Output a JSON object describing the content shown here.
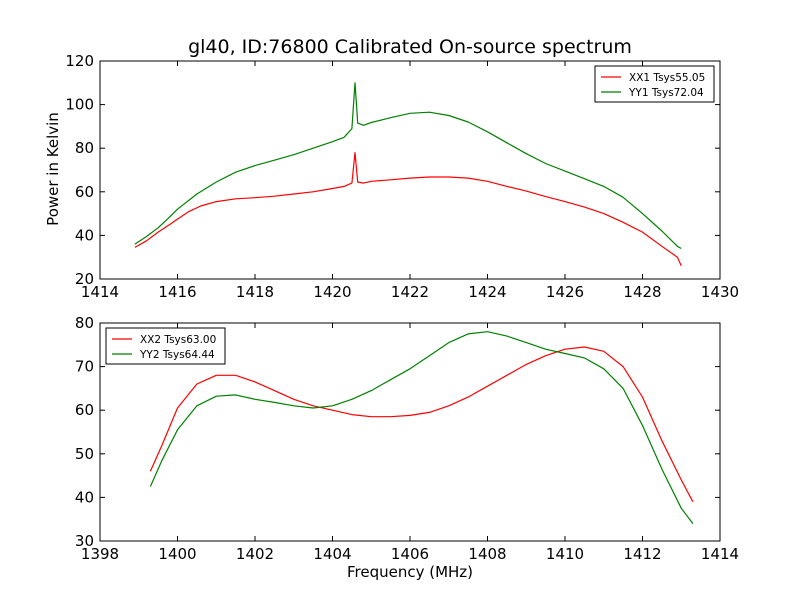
{
  "figure": {
    "title": "gl40, ID:76800 Calibrated On-source spectrum",
    "ylabel": "Power in Kelvin",
    "xlabel": "Frequency (MHz)"
  },
  "chart_data": [
    {
      "type": "line",
      "xlim": [
        1414,
        1430
      ],
      "ylim": [
        20,
        120
      ],
      "xticks": [
        1414,
        1416,
        1418,
        1420,
        1422,
        1424,
        1426,
        1428,
        1430
      ],
      "yticks": [
        20,
        40,
        60,
        80,
        100,
        120
      ],
      "grid": false,
      "legend": "top-right",
      "series": [
        {
          "name": "XX1 Tsys55.05",
          "color": "#ff0000",
          "points": [
            [
              1414.9,
              34.5
            ],
            [
              1415.2,
              37.5
            ],
            [
              1415.5,
              41.5
            ],
            [
              1415.8,
              45.0
            ],
            [
              1416.0,
              47.5
            ],
            [
              1416.3,
              51.0
            ],
            [
              1416.6,
              53.5
            ],
            [
              1417.0,
              55.5
            ],
            [
              1417.5,
              56.8
            ],
            [
              1418.0,
              57.3
            ],
            [
              1418.5,
              58.0
            ],
            [
              1419.0,
              59.0
            ],
            [
              1419.5,
              60.0
            ],
            [
              1420.0,
              61.5
            ],
            [
              1420.3,
              62.5
            ],
            [
              1420.5,
              64.0
            ],
            [
              1420.58,
              78.0
            ],
            [
              1420.65,
              64.5
            ],
            [
              1420.8,
              64.0
            ],
            [
              1421.0,
              64.8
            ],
            [
              1421.5,
              65.5
            ],
            [
              1422.0,
              66.3
            ],
            [
              1422.5,
              66.8
            ],
            [
              1423.0,
              66.8
            ],
            [
              1423.5,
              66.3
            ],
            [
              1424.0,
              64.8
            ],
            [
              1424.5,
              62.5
            ],
            [
              1425.0,
              60.3
            ],
            [
              1425.5,
              57.8
            ],
            [
              1426.0,
              55.5
            ],
            [
              1426.5,
              53.0
            ],
            [
              1427.0,
              50.0
            ],
            [
              1427.5,
              46.0
            ],
            [
              1428.0,
              41.5
            ],
            [
              1428.5,
              35.0
            ],
            [
              1428.9,
              30.0
            ],
            [
              1429.0,
              26.0
            ]
          ]
        },
        {
          "name": "YY1 Tsys72.04",
          "color": "#008000",
          "points": [
            [
              1414.9,
              36.0
            ],
            [
              1415.2,
              39.5
            ],
            [
              1415.5,
              43.5
            ],
            [
              1415.8,
              48.5
            ],
            [
              1416.0,
              52.0
            ],
            [
              1416.5,
              59.0
            ],
            [
              1417.0,
              64.5
            ],
            [
              1417.5,
              69.0
            ],
            [
              1418.0,
              72.0
            ],
            [
              1418.5,
              74.5
            ],
            [
              1419.0,
              77.0
            ],
            [
              1419.5,
              80.0
            ],
            [
              1420.0,
              83.0
            ],
            [
              1420.3,
              85.0
            ],
            [
              1420.5,
              89.0
            ],
            [
              1420.58,
              110.0
            ],
            [
              1420.65,
              91.5
            ],
            [
              1420.8,
              90.5
            ],
            [
              1421.0,
              91.8
            ],
            [
              1421.5,
              94.0
            ],
            [
              1422.0,
              96.0
            ],
            [
              1422.5,
              96.5
            ],
            [
              1423.0,
              95.0
            ],
            [
              1423.5,
              92.0
            ],
            [
              1424.0,
              87.5
            ],
            [
              1424.5,
              82.5
            ],
            [
              1425.0,
              77.5
            ],
            [
              1425.5,
              73.0
            ],
            [
              1426.0,
              69.5
            ],
            [
              1426.5,
              66.0
            ],
            [
              1427.0,
              62.5
            ],
            [
              1427.5,
              57.5
            ],
            [
              1428.0,
              50.0
            ],
            [
              1428.5,
              42.0
            ],
            [
              1428.9,
              35.0
            ],
            [
              1429.0,
              34.0
            ]
          ]
        }
      ]
    },
    {
      "type": "line",
      "xlim": [
        1398,
        1414
      ],
      "ylim": [
        30,
        80
      ],
      "xticks": [
        1398,
        1400,
        1402,
        1404,
        1406,
        1408,
        1410,
        1412,
        1414
      ],
      "yticks": [
        30,
        40,
        50,
        60,
        70,
        80
      ],
      "grid": false,
      "legend": "top-left",
      "series": [
        {
          "name": "XX2 Tsys63.00",
          "color": "#ff0000",
          "points": [
            [
              1399.3,
              46.0
            ],
            [
              1399.6,
              52.0
            ],
            [
              1400.0,
              60.5
            ],
            [
              1400.5,
              66.0
            ],
            [
              1401.0,
              68.0
            ],
            [
              1401.5,
              68.0
            ],
            [
              1402.0,
              66.5
            ],
            [
              1402.5,
              64.5
            ],
            [
              1403.0,
              62.5
            ],
            [
              1403.5,
              61.0
            ],
            [
              1404.0,
              60.0
            ],
            [
              1404.5,
              59.0
            ],
            [
              1405.0,
              58.5
            ],
            [
              1405.5,
              58.5
            ],
            [
              1406.0,
              58.8
            ],
            [
              1406.5,
              59.5
            ],
            [
              1407.0,
              61.0
            ],
            [
              1407.5,
              63.0
            ],
            [
              1408.0,
              65.5
            ],
            [
              1408.5,
              68.0
            ],
            [
              1409.0,
              70.5
            ],
            [
              1409.5,
              72.5
            ],
            [
              1410.0,
              74.0
            ],
            [
              1410.5,
              74.5
            ],
            [
              1411.0,
              73.5
            ],
            [
              1411.5,
              70.0
            ],
            [
              1412.0,
              63.0
            ],
            [
              1412.5,
              53.0
            ],
            [
              1413.0,
              44.0
            ],
            [
              1413.3,
              39.0
            ]
          ]
        },
        {
          "name": "YY2 Tsys64.44",
          "color": "#008000",
          "points": [
            [
              1399.3,
              42.5
            ],
            [
              1399.6,
              48.5
            ],
            [
              1400.0,
              55.5
            ],
            [
              1400.5,
              61.0
            ],
            [
              1401.0,
              63.2
            ],
            [
              1401.5,
              63.5
            ],
            [
              1402.0,
              62.5
            ],
            [
              1402.5,
              61.8
            ],
            [
              1403.0,
              61.0
            ],
            [
              1403.5,
              60.5
            ],
            [
              1404.0,
              61.0
            ],
            [
              1404.5,
              62.5
            ],
            [
              1405.0,
              64.5
            ],
            [
              1405.5,
              67.0
            ],
            [
              1406.0,
              69.5
            ],
            [
              1406.5,
              72.5
            ],
            [
              1407.0,
              75.5
            ],
            [
              1407.5,
              77.5
            ],
            [
              1408.0,
              78.0
            ],
            [
              1408.5,
              77.0
            ],
            [
              1409.0,
              75.5
            ],
            [
              1409.5,
              74.0
            ],
            [
              1410.0,
              73.0
            ],
            [
              1410.5,
              72.0
            ],
            [
              1411.0,
              69.5
            ],
            [
              1411.5,
              65.0
            ],
            [
              1412.0,
              56.5
            ],
            [
              1412.5,
              46.5
            ],
            [
              1413.0,
              37.5
            ],
            [
              1413.3,
              34.0
            ]
          ]
        }
      ]
    }
  ]
}
